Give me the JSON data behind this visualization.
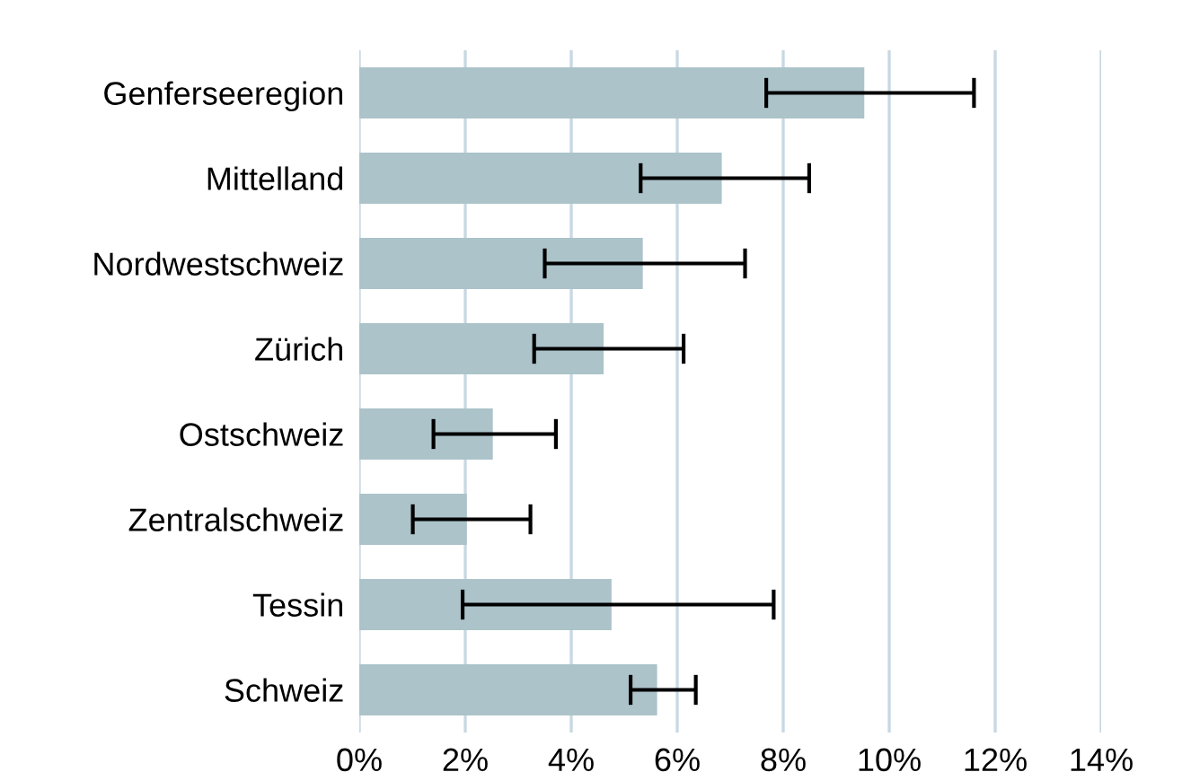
{
  "chart_data": {
    "type": "bar",
    "orientation": "horizontal",
    "categories": [
      "Genferseeregion",
      "Mittelland",
      "Nordwestschweiz",
      "Zürich",
      "Ostschweiz",
      "Zentralschweiz",
      "Tessin",
      "Schweiz"
    ],
    "values": [
      9.53,
      6.84,
      5.35,
      4.61,
      2.52,
      2.03,
      4.76,
      5.62
    ],
    "errors": [
      [
        7.68,
        11.6
      ],
      [
        5.31,
        8.49
      ],
      [
        3.5,
        7.28
      ],
      [
        3.3,
        6.12
      ],
      [
        1.4,
        3.71
      ],
      [
        1.01,
        3.23
      ],
      [
        1.95,
        7.82
      ],
      [
        5.12,
        6.35
      ]
    ],
    "color": "#abc3c9",
    "xlim": [
      0,
      14
    ],
    "xticks": [
      {
        "value": 0,
        "label": "0%"
      },
      {
        "value": 2,
        "label": "2%"
      },
      {
        "value": 4,
        "label": "4%"
      },
      {
        "value": 6,
        "label": "6%"
      },
      {
        "value": 8,
        "label": "8%"
      },
      {
        "value": 10,
        "label": "10%"
      },
      {
        "value": 12,
        "label": "12%"
      },
      {
        "value": 14,
        "label": "14%"
      }
    ],
    "grid": "x"
  }
}
